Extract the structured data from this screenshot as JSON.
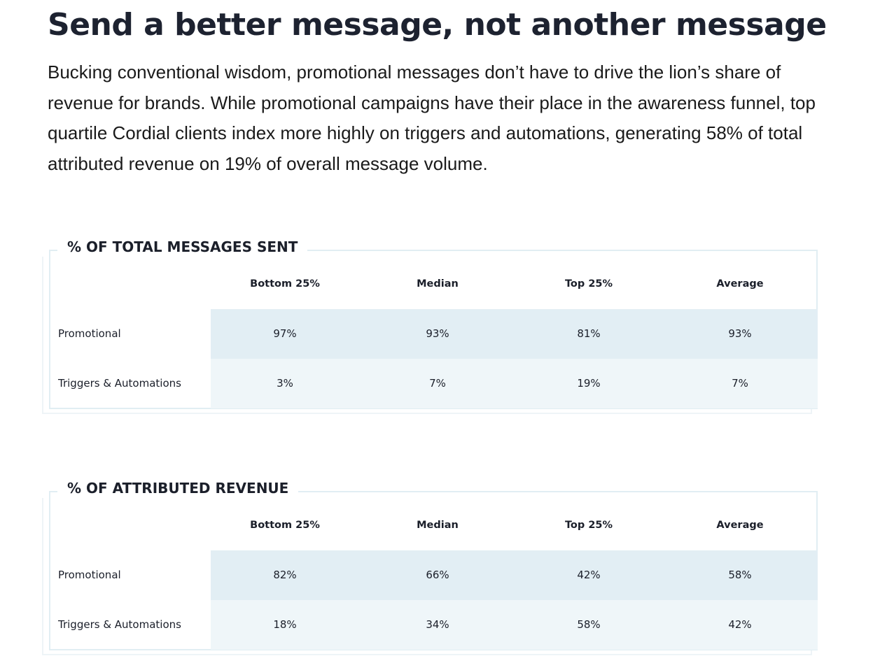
{
  "headline": "Send a better message, not another message",
  "intro": "Bucking conventional wisdom, promotional messages don’t have to drive the lion’s share of revenue for brands. While promotional campaigns have their place in the awareness funnel, top quartile Cordial clients index more highly on triggers and automations, generating 58% of total attributed revenue on 19% of overall message volume.",
  "tables": [
    {
      "title": "% OF TOTAL MESSAGES SENT",
      "columns": [
        "Bottom 25%",
        "Median",
        "Top 25%",
        "Average"
      ],
      "rows": [
        {
          "label": "Promotional",
          "values": [
            "97%",
            "93%",
            "81%",
            "93%"
          ]
        },
        {
          "label": "Triggers & Automations",
          "values": [
            "3%",
            "7%",
            "19%",
            "7%"
          ]
        }
      ]
    },
    {
      "title": "% OF ATTRIBUTED REVENUE",
      "columns": [
        "Bottom 25%",
        "Median",
        "Top 25%",
        "Average"
      ],
      "rows": [
        {
          "label": "Promotional",
          "values": [
            "82%",
            "66%",
            "42%",
            "58%"
          ]
        },
        {
          "label": "Triggers & Automations",
          "values": [
            "18%",
            "34%",
            "58%",
            "42%"
          ]
        }
      ]
    }
  ]
}
